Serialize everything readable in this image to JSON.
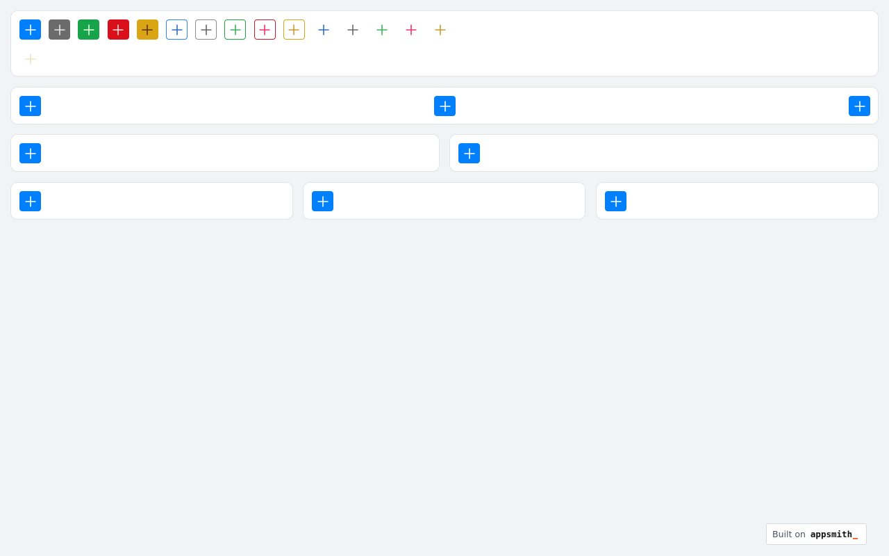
{
  "icon": "plus-icon",
  "variant_buttons": [
    {
      "style": "solid",
      "bg": "#0080ff",
      "icon_color": "#ffffff"
    },
    {
      "style": "solid",
      "bg": "#6b6b6b",
      "icon_color": "#e6e6e6"
    },
    {
      "style": "solid",
      "bg": "#16a34a",
      "icon_color": "#e8ffe8"
    },
    {
      "style": "solid",
      "bg": "#d9101c",
      "icon_color": "#ffdede"
    },
    {
      "style": "solid",
      "bg": "#d9a514",
      "icon_color": "#5a3200"
    },
    {
      "style": "outline",
      "border": "#2a86f0",
      "icon_color": "#2f6ec4"
    },
    {
      "style": "outline",
      "border": "#8c8c8c",
      "icon_color": "#666666"
    },
    {
      "style": "outline",
      "border": "#22a440",
      "icon_color": "#3bb55a"
    },
    {
      "style": "outline",
      "border": "#d01a2c",
      "icon_color": "#f0336a"
    },
    {
      "style": "outline",
      "border": "#d9a514",
      "icon_color": "#c99a2e"
    },
    {
      "style": "ghost",
      "icon_color": "#2f6ec4"
    },
    {
      "style": "ghost",
      "icon_color": "#666666"
    },
    {
      "style": "ghost",
      "icon_color": "#3bb55a"
    },
    {
      "style": "ghost",
      "icon_color": "#f0336a"
    },
    {
      "style": "ghost",
      "icon_color": "#c99a2e"
    },
    {
      "style": "ghost",
      "icon_color": "#f0e2c2"
    }
  ],
  "primary_color": "#0080ff",
  "footer": {
    "built_on": "Built on",
    "brand": "appsmith"
  }
}
